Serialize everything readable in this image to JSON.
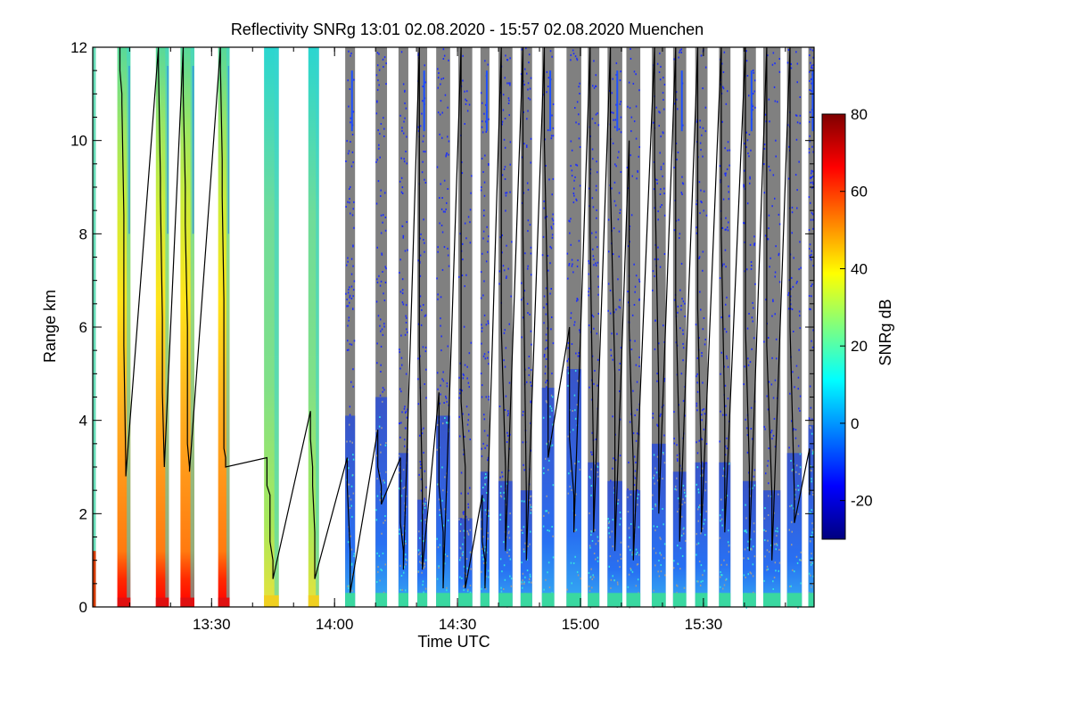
{
  "chart_data": {
    "type": "heatmap",
    "title": "Reflectivity SNRg   13:01 02.08.2020 - 15:57 02.08.2020 Muenchen",
    "xlabel": "Time UTC",
    "ylabel": "Range km",
    "colorbar_label": "SNRg dB",
    "xlim_minutes": [
      781,
      957
    ],
    "ylim": [
      0,
      12
    ],
    "x_ticks": [
      {
        "value": 810,
        "label": "13:30"
      },
      {
        "value": 840,
        "label": "14:00"
      },
      {
        "value": 870,
        "label": "14:30"
      },
      {
        "value": 900,
        "label": "15:00"
      },
      {
        "value": 930,
        "label": "15:30"
      }
    ],
    "y_ticks": [
      0,
      2,
      4,
      6,
      8,
      10,
      12
    ],
    "colorbar_range": [
      -30,
      80
    ],
    "colorbar_ticks": [
      -20,
      0,
      20,
      40,
      60,
      80
    ],
    "colormap": [
      "#00007f",
      "#0000ff",
      "#007fff",
      "#00ffff",
      "#7fff7f",
      "#ffff00",
      "#ff7f00",
      "#ff0000",
      "#7f0000"
    ],
    "noise_color": "#808080",
    "grid": false,
    "legend": "colorbar-right",
    "series": [
      {
        "type": "bright",
        "start": 787.0,
        "end": 790.2,
        "cloud_top_steps": [
          [
            12,
            11.5
          ],
          [
            11.0,
            10.8
          ],
          [
            8.4,
            5.6
          ],
          [
            3.0,
            2.8
          ]
        ]
      },
      {
        "type": "bright",
        "start": 796.4,
        "end": 799.6,
        "cloud_top_steps": [
          [
            12,
            11.6
          ],
          [
            9.2,
            8.8
          ],
          [
            6.2,
            4.6
          ],
          [
            3.0,
            3.0
          ]
        ]
      },
      {
        "type": "bright",
        "start": 802.4,
        "end": 805.8,
        "cloud_top_steps": [
          [
            12,
            11.0
          ],
          [
            9.0,
            8.2
          ],
          [
            6.0,
            3.5
          ],
          [
            3.0,
            2.9
          ]
        ]
      },
      {
        "type": "bright",
        "start": 811.6,
        "end": 814.4,
        "cloud_top_steps": [
          [
            12,
            11.6
          ],
          [
            9.6,
            8.8
          ],
          [
            6.6,
            3.4
          ],
          [
            3.2,
            3.0
          ]
        ]
      },
      {
        "type": "mid",
        "start": 822.8,
        "end": 826.4,
        "cloud_top_steps": [
          [
            3.2,
            2.6
          ],
          [
            2.4,
            1.4
          ],
          [
            1.0,
            0.6
          ]
        ]
      },
      {
        "type": "mid",
        "start": 833.6,
        "end": 836.2,
        "cloud_top_steps": [
          [
            4.2,
            3.6
          ],
          [
            3.0,
            2.6
          ],
          [
            1.6,
            0.6
          ]
        ]
      },
      {
        "type": "noise",
        "start": 842.6,
        "end": 845.0,
        "cloud_top_steps": [
          [
            3.2,
            2.6
          ],
          [
            1.2,
            0.3
          ]
        ]
      },
      {
        "type": "noise",
        "start": 850.0,
        "end": 852.8,
        "cloud_top_steps": [
          [
            3.8,
            3.0
          ],
          [
            2.6,
            2.2
          ]
        ]
      },
      {
        "type": "noise",
        "start": 855.6,
        "end": 858.0,
        "cloud_top_steps": [
          [
            3.2,
            1.8
          ],
          [
            1.2,
            0.8
          ]
        ]
      },
      {
        "type": "noise",
        "start": 860.2,
        "end": 862.6,
        "cloud_top_steps": [
          [
            12,
            5.6
          ],
          [
            2.6,
            0.8
          ]
        ]
      },
      {
        "type": "noise",
        "start": 864.8,
        "end": 868.2,
        "cloud_top_steps": [
          [
            4.6,
            2.6
          ],
          [
            1.6,
            0.4
          ]
        ]
      },
      {
        "type": "noise",
        "start": 870.2,
        "end": 873.6,
        "cloud_top_steps": [
          [
            12,
            4.4
          ],
          [
            3.0,
            0.4
          ]
        ]
      },
      {
        "type": "noise",
        "start": 875.6,
        "end": 877.8,
        "cloud_top_steps": [
          [
            2.4,
            1.4
          ],
          [
            1.0,
            0.4
          ]
        ]
      },
      {
        "type": "noise",
        "start": 880.0,
        "end": 883.4,
        "cloud_top_steps": [
          [
            12,
            6.0
          ],
          [
            3.0,
            1.2
          ]
        ]
      },
      {
        "type": "noise",
        "start": 885.4,
        "end": 888.2,
        "cloud_top_steps": [
          [
            12,
            8.0
          ],
          [
            2.4,
            1.0
          ]
        ]
      },
      {
        "type": "noise",
        "start": 890.6,
        "end": 893.6,
        "cloud_top_steps": [
          [
            12,
            10.0
          ],
          [
            6.0,
            3.2
          ]
        ]
      },
      {
        "type": "noise",
        "start": 896.6,
        "end": 900.2,
        "cloud_top_steps": [
          [
            6.0,
            3.6
          ],
          [
            2.4,
            1.6
          ]
        ]
      },
      {
        "type": "noise",
        "start": 901.8,
        "end": 904.6,
        "cloud_top_steps": [
          [
            12,
            8.0
          ],
          [
            3.0,
            1.6
          ]
        ]
      },
      {
        "type": "noise",
        "start": 906.6,
        "end": 910.2,
        "cloud_top_steps": [
          [
            12,
            9.0
          ],
          [
            5.0,
            1.2
          ]
        ]
      },
      {
        "type": "noise",
        "start": 911.2,
        "end": 914.6,
        "cloud_top_steps": [
          [
            10.0,
            6.0
          ],
          [
            3.0,
            1.0
          ]
        ]
      },
      {
        "type": "noise",
        "start": 917.4,
        "end": 920.8,
        "cloud_top_steps": [
          [
            12,
            9.6
          ],
          [
            4.6,
            2.0
          ]
        ]
      },
      {
        "type": "noise",
        "start": 922.6,
        "end": 925.8,
        "cloud_top_steps": [
          [
            12,
            6.6
          ],
          [
            3.2,
            1.4
          ]
        ]
      },
      {
        "type": "noise",
        "start": 928.0,
        "end": 931.0,
        "cloud_top_steps": [
          [
            12,
            6.4
          ],
          [
            3.0,
            1.6
          ]
        ]
      },
      {
        "type": "noise",
        "start": 933.8,
        "end": 936.6,
        "cloud_top_steps": [
          [
            12,
            8.0
          ],
          [
            4.0,
            1.6
          ]
        ]
      },
      {
        "type": "noise",
        "start": 939.6,
        "end": 942.8,
        "cloud_top_steps": [
          [
            12,
            6.0
          ],
          [
            3.0,
            1.2
          ]
        ]
      },
      {
        "type": "noise",
        "start": 944.6,
        "end": 948.8,
        "cloud_top_steps": [
          [
            12,
            5.6
          ],
          [
            2.4,
            1.0
          ]
        ]
      },
      {
        "type": "noise",
        "start": 950.4,
        "end": 954.0,
        "cloud_top_steps": [
          [
            12,
            6.0
          ],
          [
            2.4,
            1.8
          ]
        ]
      },
      {
        "type": "noise",
        "start": 955.6,
        "end": 957.0,
        "cloud_top_steps": [
          [
            3.4,
            2.4
          ]
        ]
      }
    ]
  }
}
